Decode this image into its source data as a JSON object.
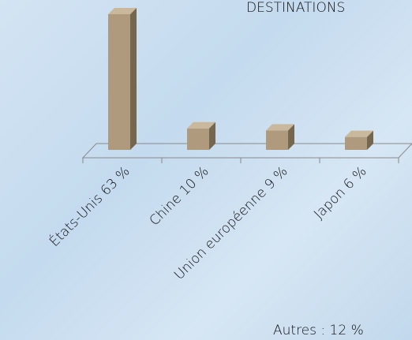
{
  "chart_data": {
    "type": "bar3d",
    "title": "DESTINATIONS",
    "categories": [
      "États-Unis 63 %",
      "Chine 10 %",
      "Union européenne 9 %",
      "Japon 6 %"
    ],
    "values": [
      63,
      10,
      9,
      6
    ],
    "color": "#b09a7e",
    "annotation": "Autres : 12 %"
  }
}
